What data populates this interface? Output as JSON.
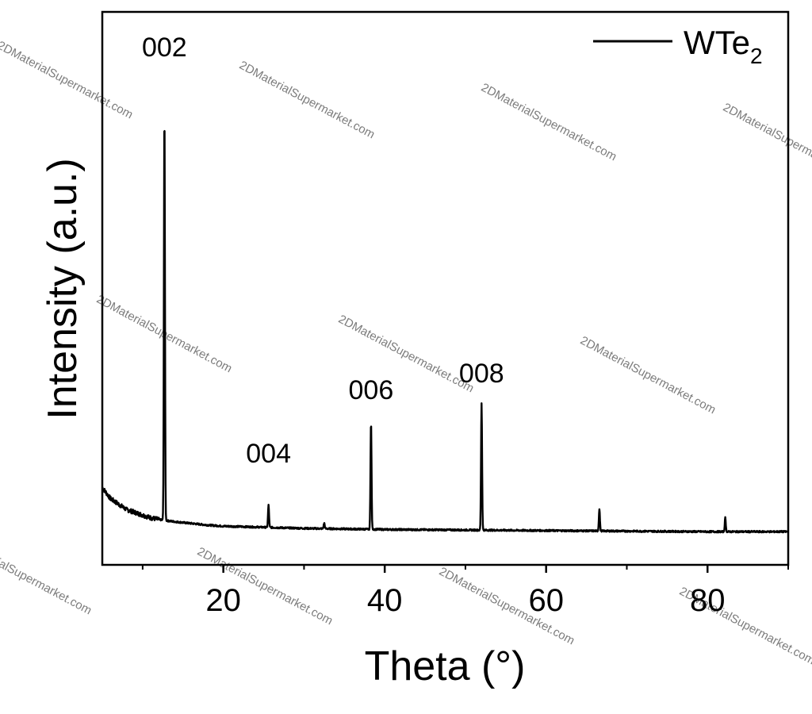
{
  "chart_data": {
    "type": "line",
    "xlabel": "Theta (°)",
    "ylabel": "Intensity (a.u.)",
    "xlim": [
      5,
      90
    ],
    "ylim": [
      0,
      1
    ],
    "x_ticks": [
      20,
      40,
      60,
      80
    ],
    "x_minor_ticks": [
      10,
      30,
      50,
      70,
      90
    ],
    "grid": false,
    "legend_position": "top-right",
    "series": [
      {
        "name": "WTe2",
        "legend_main": "WTe",
        "legend_sub": "2",
        "color": "#000000",
        "baseline": [
          [
            5,
            0.14
          ],
          [
            6,
            0.12
          ],
          [
            7,
            0.11
          ],
          [
            8,
            0.1
          ],
          [
            9,
            0.095
          ],
          [
            10,
            0.09
          ],
          [
            11,
            0.085
          ],
          [
            12,
            0.082
          ],
          [
            14,
            0.078
          ],
          [
            16,
            0.075
          ],
          [
            18,
            0.072
          ],
          [
            20,
            0.07
          ],
          [
            25,
            0.068
          ],
          [
            30,
            0.066
          ],
          [
            40,
            0.064
          ],
          [
            50,
            0.063
          ],
          [
            60,
            0.062
          ],
          [
            70,
            0.061
          ],
          [
            80,
            0.06
          ],
          [
            90,
            0.06
          ]
        ],
        "peaks": [
          {
            "x": 12.7,
            "height": 0.74
          },
          {
            "x": 25.6,
            "height": 0.04
          },
          {
            "x": 32.5,
            "height": 0.01
          },
          {
            "x": 38.3,
            "height": 0.195
          },
          {
            "x": 52.0,
            "height": 0.23
          },
          {
            "x": 66.6,
            "height": 0.04
          },
          {
            "x": 82.2,
            "height": 0.025
          }
        ]
      }
    ],
    "annotations": [
      {
        "text": "002",
        "x": 12.7,
        "y": 0.92
      },
      {
        "text": "004",
        "x": 25.6,
        "y": 0.185
      },
      {
        "text": "006",
        "x": 38.3,
        "y": 0.3
      },
      {
        "text": "008",
        "x": 52.0,
        "y": 0.33
      }
    ]
  },
  "watermark": "2DMaterialSupermarket.com"
}
